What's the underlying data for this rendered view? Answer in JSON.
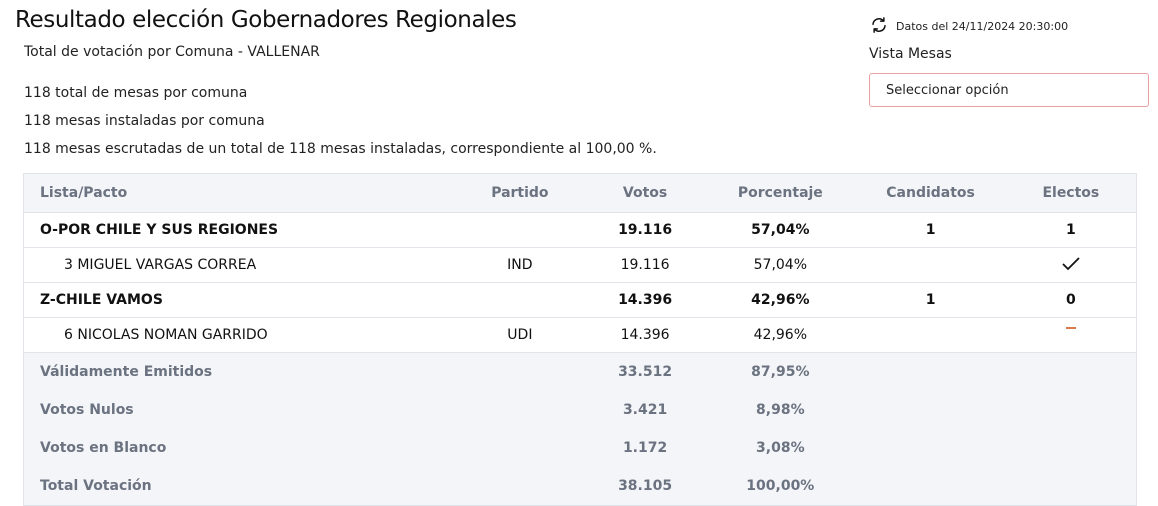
{
  "header": {
    "title": "Resultado elección Gobernadores Regionales",
    "subtitle": "Total de votación por Comuna - VALLENAR",
    "updated_text": "Datos del 24/11/2024 20:30:00",
    "vista_label": "Vista Mesas",
    "select_value": "Seleccionar opción"
  },
  "info": {
    "line1": "118 total de mesas por comuna",
    "line2": "118 mesas instaladas por comuna",
    "line3": "118 mesas escrutadas de un total de 118 mesas instaladas, correspondiente al 100,00 %."
  },
  "table": {
    "columns": [
      "Lista/Pacto",
      "Partido",
      "Votos",
      "Porcentaje",
      "Candidatos",
      "Electos"
    ],
    "rows": [
      {
        "type": "pacto",
        "lista": "O-POR CHILE Y SUS REGIONES",
        "partido": "",
        "votos": "19.116",
        "porcentaje": "57,04%",
        "candidatos": "1",
        "electos": "1"
      },
      {
        "type": "candidato",
        "lista": "3 MIGUEL VARGAS CORREA",
        "partido": "IND",
        "votos": "19.116",
        "porcentaje": "57,04%",
        "candidatos": "",
        "electos_icon": "checkmark-icon",
        "electo": true
      },
      {
        "type": "pacto",
        "lista": "Z-CHILE VAMOS",
        "partido": "",
        "votos": "14.396",
        "porcentaje": "42,96%",
        "candidatos": "1",
        "electos": "0"
      },
      {
        "type": "candidato",
        "lista": "6 NICOLAS NOMAN GARRIDO",
        "partido": "UDI",
        "votos": "14.396",
        "porcentaje": "42,96%",
        "candidatos": "",
        "electos_icon": "dash-icon",
        "electo": false
      }
    ],
    "summary": [
      {
        "label": "Válidamente Emitidos",
        "votos": "33.512",
        "porcentaje": "87,95%"
      },
      {
        "label": "Votos Nulos",
        "votos": "3.421",
        "porcentaje": "8,98%"
      },
      {
        "label": "Votos en Blanco",
        "votos": "1.172",
        "porcentaje": "3,08%"
      },
      {
        "label": "Total Votación",
        "votos": "38.105",
        "porcentaje": "100,00%"
      }
    ]
  },
  "colors": {
    "header_bg": "#f3f5f8",
    "muted_text": "#6b7280",
    "select_border": "#e8a0a0",
    "dash_color": "#d97a4a"
  }
}
